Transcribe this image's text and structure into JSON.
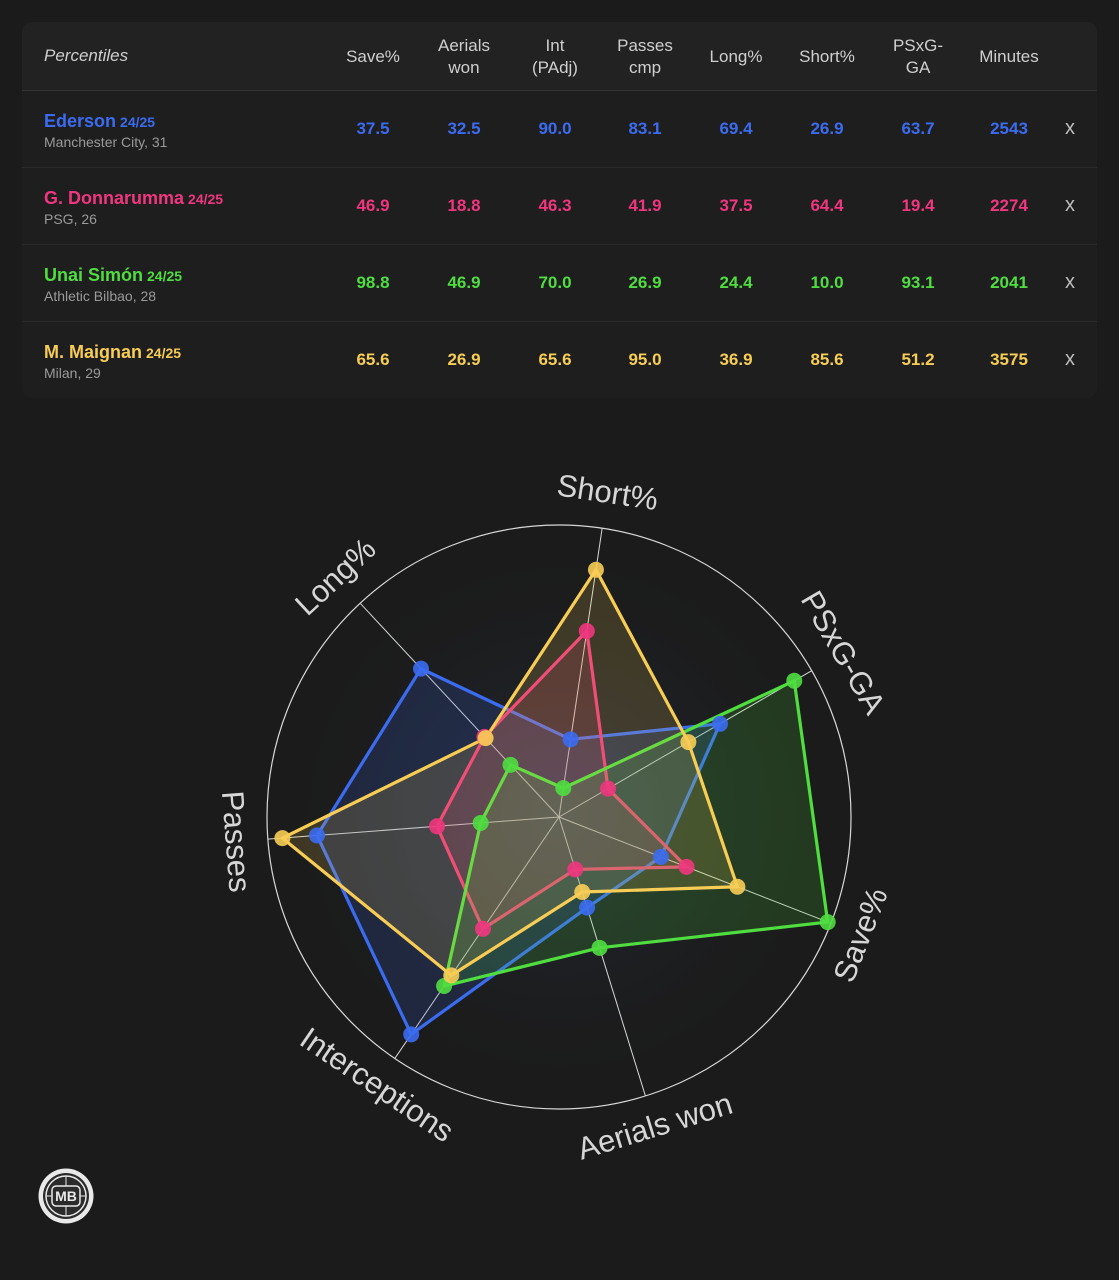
{
  "table": {
    "header_label": "Percentiles",
    "columns": [
      "Save%",
      "Aerials\nwon",
      "Int\n(PAdj)",
      "Passes\ncmp",
      "Long%",
      "Short%",
      "PSxG-\nGA",
      "Minutes"
    ],
    "remove_label": "x",
    "rows": [
      {
        "name": "Ederson",
        "season": "24/25",
        "team": "Manchester City, 31",
        "color": "#3b6cf0",
        "values": [
          "37.5",
          "32.5",
          "90.0",
          "83.1",
          "69.4",
          "26.9",
          "63.7",
          "2543"
        ]
      },
      {
        "name": "G. Donnarumma",
        "season": "24/25",
        "team": "PSG, 26",
        "color": "#f0367e",
        "values": [
          "46.9",
          "18.8",
          "46.3",
          "41.9",
          "37.5",
          "64.4",
          "19.4",
          "2274"
        ]
      },
      {
        "name": "Unai Simón",
        "season": "24/25",
        "team": "Athletic Bilbao, 28",
        "color": "#4fdd40",
        "values": [
          "98.8",
          "46.9",
          "70.0",
          "26.9",
          "24.4",
          "10.0",
          "93.1",
          "2041"
        ]
      },
      {
        "name": "M. Maignan",
        "season": "24/25",
        "team": "Milan, 29",
        "color": "#f8cd55",
        "values": [
          "65.6",
          "26.9",
          "65.6",
          "95.0",
          "36.9",
          "85.6",
          "51.2",
          "3575"
        ]
      }
    ]
  },
  "chart_data": {
    "type": "radar",
    "axes": [
      "Short%",
      "PSxG-GA",
      "Save%",
      "Aerials won",
      "Interceptions",
      "Passes",
      "Long%"
    ],
    "range": [
      0,
      100
    ],
    "series": [
      {
        "name": "Ederson",
        "color": "#3b6cf0",
        "values": [
          26.9,
          63.7,
          37.5,
          32.5,
          90.0,
          83.1,
          69.4
        ]
      },
      {
        "name": "G. Donnarumma",
        "color": "#f0367e",
        "values": [
          64.4,
          19.4,
          46.9,
          18.8,
          46.3,
          41.9,
          37.5
        ]
      },
      {
        "name": "Unai Simón",
        "color": "#4fdd40",
        "values": [
          10.0,
          93.1,
          98.8,
          46.9,
          70.0,
          26.9,
          24.4
        ]
      },
      {
        "name": "M. Maignan",
        "color": "#f8cd55",
        "values": [
          85.6,
          51.2,
          65.6,
          26.9,
          65.6,
          95.0,
          36.9
        ]
      }
    ]
  },
  "logo": {
    "text": "MB"
  }
}
